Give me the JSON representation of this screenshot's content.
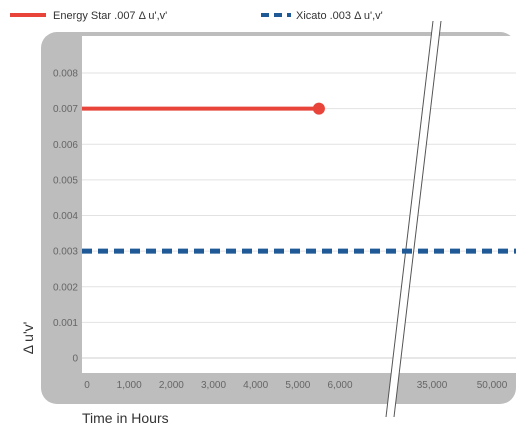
{
  "chart_data": {
    "type": "line",
    "xlabel": "Time in Hours",
    "ylabel": "Δ u'v'",
    "x_ticks": [
      "0",
      "1,000",
      "2,000",
      "3,000",
      "4,000",
      "5,000",
      "6,000",
      "35,000",
      "50,000"
    ],
    "y_ticks": [
      "0",
      "0.001",
      "0.002",
      "0.003",
      "0.004",
      "0.005",
      "0.006",
      "0.007",
      "0.008"
    ],
    "ylim": [
      0,
      0.008
    ],
    "grid": true,
    "legend_position": "top",
    "axis_break": "between 6,000 and 35,000",
    "series": [
      {
        "name": "Energy Star .007 Δ u',v'",
        "color": "#e8443a",
        "style": "solid",
        "points": [
          {
            "x": 0,
            "y": 0.007
          },
          {
            "x": 5500,
            "y": 0.007
          }
        ],
        "end_marker": true
      },
      {
        "name": "Xicato .003 Δ u',v'",
        "color": "#1f5a96",
        "style": "dashed",
        "points": [
          {
            "x": 0,
            "y": 0.003
          },
          {
            "x": 50000,
            "y": 0.003
          }
        ],
        "end_marker": false
      }
    ]
  }
}
